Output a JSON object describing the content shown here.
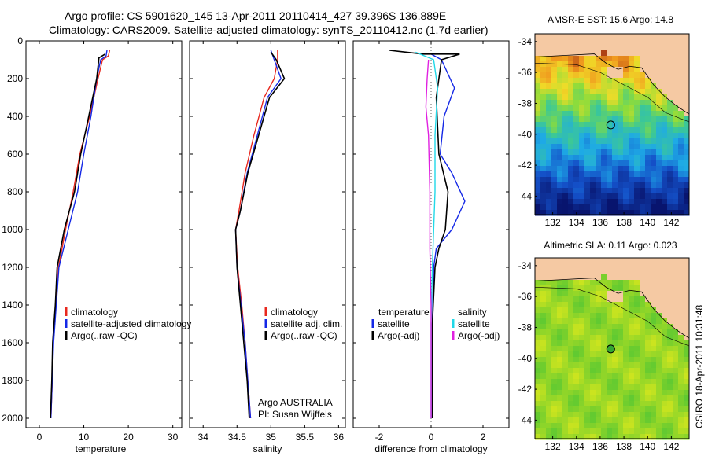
{
  "titles": {
    "line1": "Argo profile: CS 5901620_145 13-Apr-2011 20110414_427 39.396S 136.889E",
    "line2": "Climatology: CARS2009. Satellite-adjusted climatology: synTS_20110412.nc (1.7d earlier)",
    "credit": "CSIRO 18-Apr-2011 10:31:48"
  },
  "colors": {
    "climatology": "#e8281e",
    "satellite": "#1428e6",
    "argo": "#000000",
    "argo_adj_sal": "#e020e0",
    "sat_sal": "#20d8e8"
  },
  "panels": [
    {
      "name": "temperature",
      "xlabel": "temperature",
      "xlim": [
        -3,
        32
      ],
      "xticks": [
        "0",
        "10",
        "20",
        "30"
      ],
      "xtick_vals": [
        0,
        10,
        20,
        30
      ],
      "legend": [
        {
          "label": "climatology",
          "color": "#e8281e"
        },
        {
          "label": "satellite-adjusted climatology",
          "color": "#1428e6"
        },
        {
          "label": "Argo(..raw -QC)",
          "color": "#000000"
        }
      ]
    },
    {
      "name": "salinity",
      "xlabel": "salinity",
      "xlim": [
        33.8,
        36.1
      ],
      "xticks": [
        "34",
        "34.5",
        "35",
        "35.5",
        "36"
      ],
      "xtick_vals": [
        34,
        34.5,
        35,
        35.5,
        36
      ],
      "legend": [
        {
          "label": "climatology",
          "color": "#e8281e"
        },
        {
          "label": "satellite adj. clim.",
          "color": "#1428e6"
        },
        {
          "label": "Argo(..raw -QC)",
          "color": "#000000"
        }
      ],
      "note1": "Argo AUSTRALIA",
      "note2": "PI: Susan Wijffels"
    },
    {
      "name": "difference",
      "xlabel": "difference from climatology",
      "xlim": [
        -3,
        3
      ],
      "xticks": [
        "-2",
        "0",
        "2"
      ],
      "xtick_vals": [
        -2,
        0,
        2
      ],
      "legend_temp_title": "temperature",
      "legend_sal_title": "salinity",
      "legend": [
        {
          "label": "satellite",
          "color": "#1428e6"
        },
        {
          "label": "Argo(-adj)",
          "color": "#000000"
        },
        {
          "label": "satellite",
          "color": "#20d8e8"
        },
        {
          "label": "Argo(-adj)",
          "color": "#e020e0"
        }
      ]
    }
  ],
  "depth_axis": {
    "ylim": [
      0,
      2050
    ],
    "yticks": [
      "0",
      "200",
      "400",
      "600",
      "800",
      "1000",
      "1200",
      "1400",
      "1600",
      "1800",
      "2000"
    ],
    "ytick_vals": [
      0,
      200,
      400,
      600,
      800,
      1000,
      1200,
      1400,
      1600,
      1800,
      2000
    ]
  },
  "maps": [
    {
      "title": "AMSR-E SST: 15.6 Argo: 14.8"
    },
    {
      "title": "Altimetric SLA: 0.11 Argo: 0.023"
    }
  ],
  "map_axis": {
    "lon_ticks": [
      "132",
      "134",
      "136",
      "138",
      "140",
      "142"
    ],
    "lat_ticks": [
      "-34",
      "-36",
      "-38",
      "-40",
      "-42",
      "-44"
    ]
  },
  "chart_data": [
    {
      "type": "line",
      "title": "",
      "xlabel": "temperature",
      "ylabel": "",
      "xlim": [
        -3,
        32
      ],
      "ylim": [
        2050,
        0
      ],
      "series": [
        {
          "name": "climatology",
          "color": "#e8281e",
          "points": [
            [
              15.8,
              50
            ],
            [
              15.5,
              80
            ],
            [
              14.2,
              100
            ],
            [
              13.2,
              200
            ],
            [
              11.3,
              400
            ],
            [
              9.1,
              600
            ],
            [
              7.6,
              800
            ],
            [
              5.9,
              1000
            ],
            [
              4.3,
              1200
            ],
            [
              3.7,
              1400
            ],
            [
              3.1,
              1600
            ],
            [
              2.9,
              1800
            ],
            [
              2.6,
              2000
            ]
          ]
        },
        {
          "name": "satellite-adjusted climatology",
          "color": "#1428e6",
          "points": [
            [
              15.2,
              50
            ],
            [
              15.0,
              80
            ],
            [
              13.8,
              100
            ],
            [
              12.9,
              200
            ],
            [
              11.6,
              400
            ],
            [
              10.0,
              600
            ],
            [
              8.6,
              800
            ],
            [
              6.5,
              1000
            ],
            [
              4.4,
              1200
            ],
            [
              3.8,
              1400
            ],
            [
              3.2,
              1600
            ],
            [
              2.9,
              1800
            ],
            [
              2.6,
              2000
            ]
          ]
        },
        {
          "name": "Argo(..raw -QC)",
          "color": "#000000",
          "points": [
            [
              14.8,
              70
            ],
            [
              13.4,
              90
            ],
            [
              12.9,
              200
            ],
            [
              11.1,
              400
            ],
            [
              9.3,
              600
            ],
            [
              7.9,
              800
            ],
            [
              5.6,
              1000
            ],
            [
              4.0,
              1200
            ],
            [
              3.6,
              1400
            ],
            [
              3.0,
              1600
            ],
            [
              2.8,
              1800
            ],
            [
              2.5,
              2000
            ]
          ]
        }
      ]
    },
    {
      "type": "line",
      "title": "",
      "xlabel": "salinity",
      "ylabel": "",
      "xlim": [
        33.8,
        36.1
      ],
      "ylim": [
        2050,
        0
      ],
      "series": [
        {
          "name": "climatology",
          "color": "#e8281e",
          "points": [
            [
              35.1,
              50
            ],
            [
              35.1,
              100
            ],
            [
              35.05,
              200
            ],
            [
              34.9,
              300
            ],
            [
              34.75,
              500
            ],
            [
              34.62,
              700
            ],
            [
              34.53,
              900
            ],
            [
              34.48,
              1000
            ],
            [
              34.51,
              1200
            ],
            [
              34.57,
              1400
            ],
            [
              34.62,
              1600
            ],
            [
              34.66,
              1800
            ],
            [
              34.7,
              2000
            ]
          ]
        },
        {
          "name": "satellite adj. clim.",
          "color": "#1428e6",
          "points": [
            [
              35.0,
              50
            ],
            [
              35.05,
              100
            ],
            [
              35.15,
              200
            ],
            [
              34.95,
              300
            ],
            [
              34.8,
              500
            ],
            [
              34.65,
              700
            ],
            [
              34.55,
              900
            ],
            [
              34.48,
              1000
            ],
            [
              34.5,
              1200
            ],
            [
              34.56,
              1400
            ],
            [
              34.62,
              1600
            ],
            [
              34.66,
              1800
            ],
            [
              34.7,
              2000
            ]
          ]
        },
        {
          "name": "Argo(..raw -QC)",
          "color": "#000000",
          "points": [
            [
              35.0,
              60
            ],
            [
              35.08,
              100
            ],
            [
              35.2,
              200
            ],
            [
              34.98,
              300
            ],
            [
              34.82,
              500
            ],
            [
              34.66,
              700
            ],
            [
              34.55,
              900
            ],
            [
              34.48,
              1000
            ],
            [
              34.5,
              1200
            ],
            [
              34.55,
              1400
            ],
            [
              34.6,
              1600
            ],
            [
              34.65,
              1800
            ],
            [
              34.68,
              2000
            ]
          ]
        }
      ]
    },
    {
      "type": "line",
      "title": "",
      "xlabel": "difference from climatology",
      "ylabel": "",
      "xlim": [
        -3,
        3
      ],
      "ylim": [
        2050,
        0
      ],
      "series": [
        {
          "name": "temperature satellite",
          "color": "#1428e6",
          "points": [
            [
              0,
              70
            ],
            [
              0.4,
              100
            ],
            [
              0.9,
              250
            ],
            [
              0.5,
              400
            ],
            [
              0.35,
              600
            ],
            [
              0.8,
              700
            ],
            [
              1.3,
              850
            ],
            [
              0.8,
              1000
            ],
            [
              0.2,
              1100
            ],
            [
              0.1,
              1200
            ],
            [
              0.05,
              1500
            ],
            [
              0.05,
              2000
            ]
          ]
        },
        {
          "name": "temperature Argo(-adj)",
          "color": "#000000",
          "points": [
            [
              -1.6,
              50
            ],
            [
              -0.3,
              70
            ],
            [
              1.1,
              70
            ],
            [
              0.4,
              100
            ],
            [
              0.2,
              300
            ],
            [
              0.3,
              600
            ],
            [
              0.65,
              800
            ],
            [
              0.55,
              1000
            ],
            [
              0.3,
              1100
            ],
            [
              0.15,
              1200
            ],
            [
              0.05,
              1500
            ],
            [
              0.05,
              2000
            ]
          ]
        },
        {
          "name": "salinity satellite",
          "color": "#20d8e8",
          "points": [
            [
              -0.6,
              60
            ],
            [
              0.1,
              100
            ],
            [
              0.25,
              250
            ],
            [
              0.15,
              500
            ],
            [
              0.15,
              800
            ],
            [
              0.1,
              1000
            ],
            [
              0.05,
              1200
            ],
            [
              0.0,
              1500
            ],
            [
              0.0,
              2000
            ]
          ]
        },
        {
          "name": "salinity Argo(-adj)",
          "color": "#e020e0",
          "points": [
            [
              -0.1,
              100
            ],
            [
              -0.15,
              200
            ],
            [
              -0.2,
              350
            ],
            [
              -0.1,
              500
            ],
            [
              -0.05,
              800
            ],
            [
              -0.05,
              1100
            ],
            [
              0.0,
              1400
            ],
            [
              0.0,
              2000
            ]
          ]
        }
      ]
    }
  ]
}
